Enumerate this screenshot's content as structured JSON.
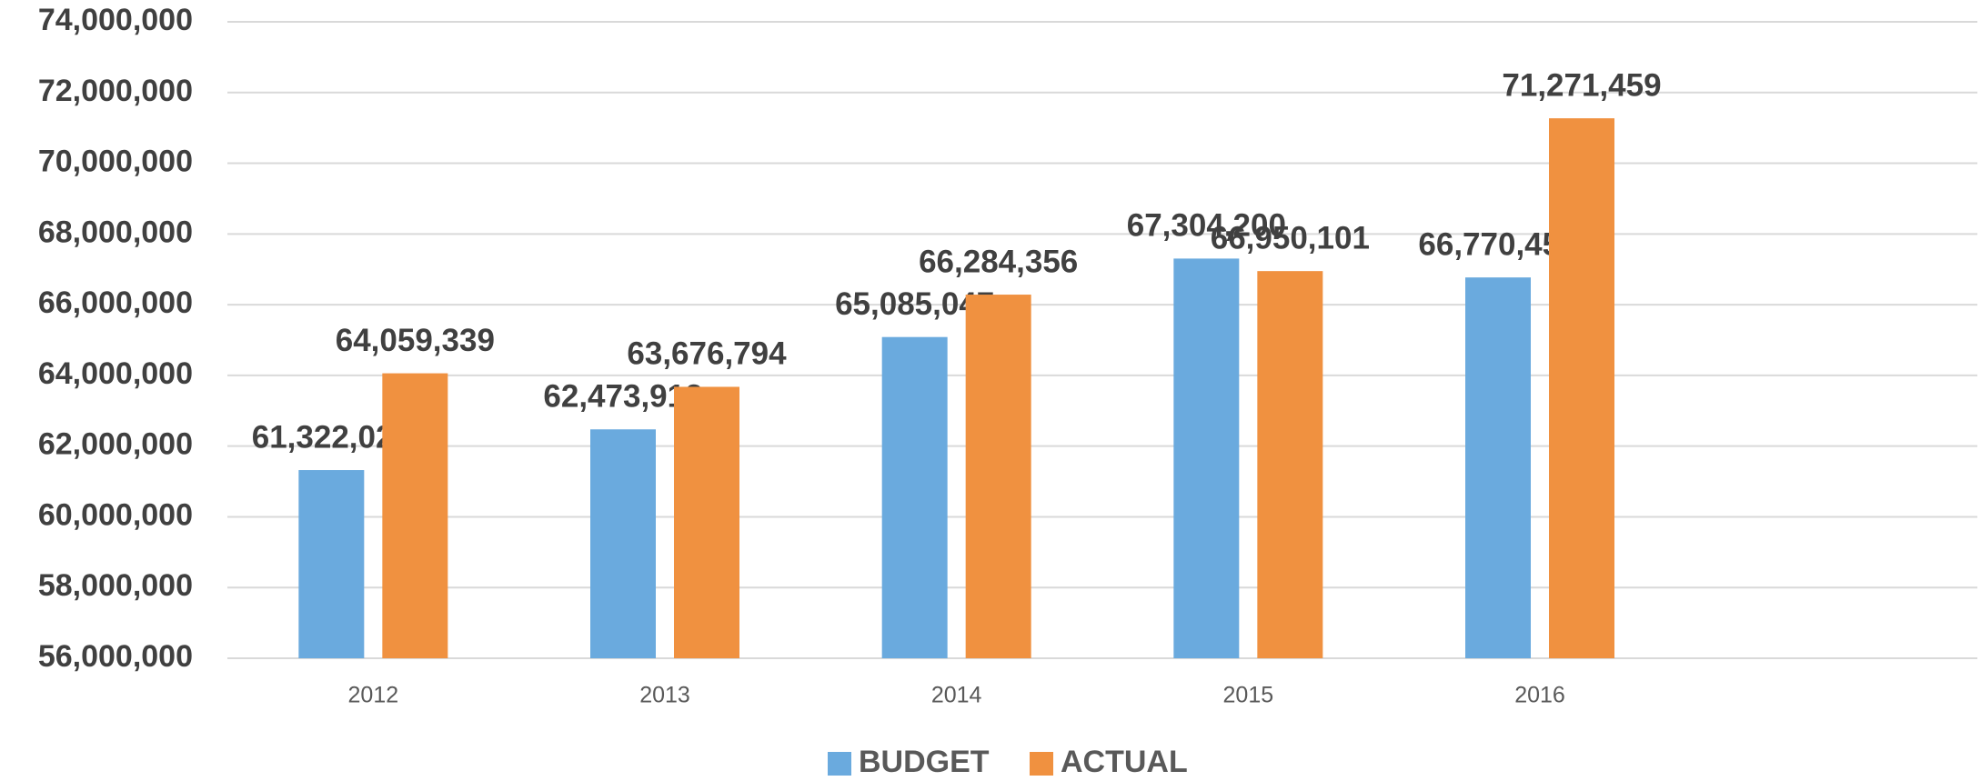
{
  "chart_data": {
    "type": "bar",
    "categories": [
      "2012",
      "2013",
      "2014",
      "2015",
      "2016",
      null
    ],
    "series": [
      {
        "name": "BUDGET",
        "color": "#6aaade",
        "values": [
          61322020,
          62473912,
          65085047,
          67304200,
          66770451,
          null
        ],
        "value_labels": [
          "61,322,020",
          "62,473,912",
          "65,085,047",
          "67,304,200",
          "66,770,451",
          null
        ]
      },
      {
        "name": "ACTUAL",
        "color": "#f09140",
        "values": [
          64059339,
          63676794,
          66284356,
          66950101,
          71271459,
          null
        ],
        "value_labels": [
          "64,059,339",
          "63,676,794",
          "66,284,356",
          "66,950,101",
          "71,271,459",
          null
        ]
      }
    ],
    "ylim": [
      56000000,
      74000000
    ],
    "yticks": [
      {
        "value": 56000000,
        "label": "56,000,000"
      },
      {
        "value": 58000000,
        "label": "58,000,000"
      },
      {
        "value": 60000000,
        "label": "60,000,000"
      },
      {
        "value": 62000000,
        "label": "62,000,000"
      },
      {
        "value": 64000000,
        "label": "64,000,000"
      },
      {
        "value": 66000000,
        "label": "66,000,000"
      },
      {
        "value": 68000000,
        "label": "68,000,000"
      },
      {
        "value": 70000000,
        "label": "70,000,000"
      },
      {
        "value": 72000000,
        "label": "72,000,000"
      },
      {
        "value": 74000000,
        "label": "74,000,000"
      }
    ],
    "grid": true,
    "legend": "bottom"
  }
}
